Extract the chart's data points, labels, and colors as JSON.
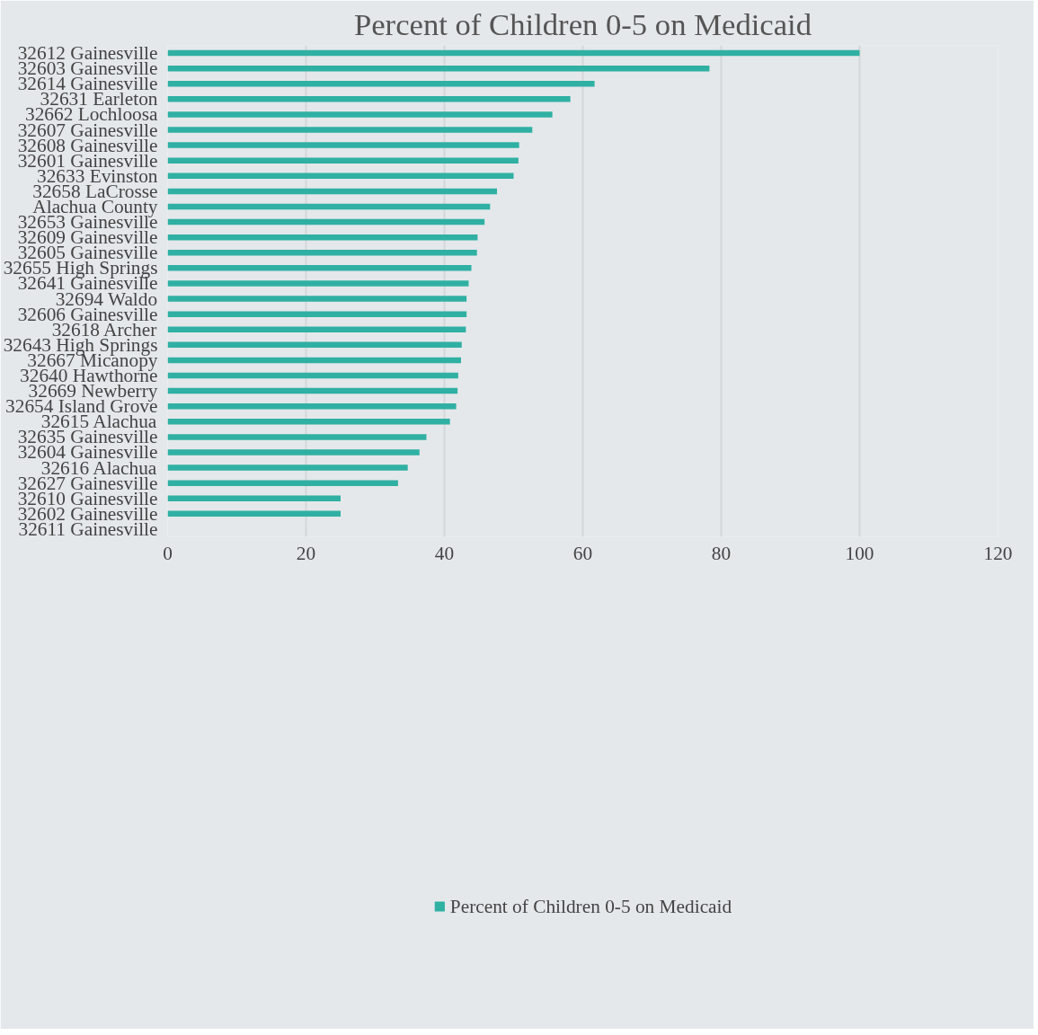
{
  "chart_data": {
    "type": "bar",
    "orientation": "horizontal",
    "title": "Percent of Children 0-5 on Medicaid",
    "categories": [
      "32612 Gainesville",
      "32603 Gainesville",
      "32614 Gainesville",
      "32631 Earleton",
      "32662 Lochloosa",
      "32607 Gainesville",
      "32608 Gainesville",
      "32601 Gainesville",
      "32633 Evinston",
      "32658 LaCrosse",
      "Alachua County",
      "32653 Gainesville",
      "32609 Gainesville",
      "32605 Gainesville",
      "32655 High Springs",
      "32641 Gainesville",
      "32694 Waldo",
      "32606 Gainesville",
      "32618 Archer",
      "32643 High Springs",
      "32667 Micanopy",
      "32640 Hawthorne",
      "32669 Newberry",
      "32654 Island Grove",
      "32615 Alachua",
      "32635 Gainesville",
      "32604 Gainesville",
      "32616 Alachua",
      "32627 Gainesville",
      "32610 Gainesville",
      "32602 Gainesville",
      "32611 Gainesville"
    ],
    "series": [
      {
        "name": "Percent of Children 0-5 on Medicaid",
        "color": "#2fb0a3",
        "values": [
          100,
          78.3,
          61.7,
          58.2,
          55.6,
          52.7,
          50.8,
          50.7,
          50.0,
          47.6,
          46.6,
          45.8,
          44.8,
          44.7,
          43.9,
          43.5,
          43.2,
          43.2,
          43.1,
          42.5,
          42.4,
          42.0,
          41.9,
          41.7,
          40.8,
          37.4,
          36.4,
          34.7,
          33.3,
          25.0,
          25.0,
          0
        ]
      }
    ],
    "xlim": [
      0,
      120
    ],
    "xticks": [
      0,
      20,
      40,
      60,
      80,
      100,
      120
    ],
    "grid": "x",
    "legend": "bottom"
  }
}
